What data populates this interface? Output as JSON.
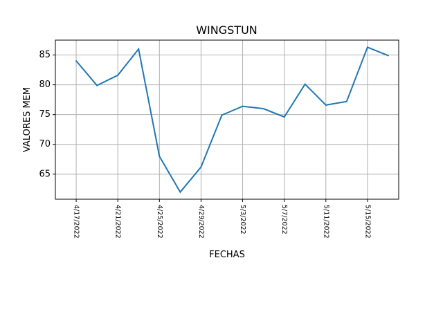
{
  "chart_data": {
    "type": "line",
    "title": "WINGSTUN",
    "xlabel": "FECHAS",
    "ylabel": "VALORES MEM",
    "grid": true,
    "line_color": "#1f77b4",
    "x": [
      "4/17/2022",
      "4/19/2022",
      "4/21/2022",
      "4/23/2022",
      "4/25/2022",
      "4/27/2022",
      "4/29/2022",
      "5/1/2022",
      "5/3/2022",
      "5/5/2022",
      "5/7/2022",
      "5/9/2022",
      "5/11/2022",
      "5/13/2022",
      "5/15/2022",
      "5/17/2022"
    ],
    "values": [
      84.0,
      79.9,
      81.6,
      86.0,
      68.0,
      62.0,
      66.2,
      74.9,
      76.4,
      76.0,
      74.6,
      80.1,
      76.6,
      77.2,
      86.3,
      84.9
    ],
    "x_ticks": [
      "4/17/2022",
      "4/21/2022",
      "4/25/2022",
      "4/29/2022",
      "5/3/2022",
      "5/7/2022",
      "5/11/2022",
      "5/15/2022"
    ],
    "y_ticks": [
      65,
      70,
      75,
      80,
      85
    ],
    "xlim": [
      "4/15/2022",
      "5/18/2022"
    ],
    "ylim": [
      60.8,
      87.5
    ]
  }
}
